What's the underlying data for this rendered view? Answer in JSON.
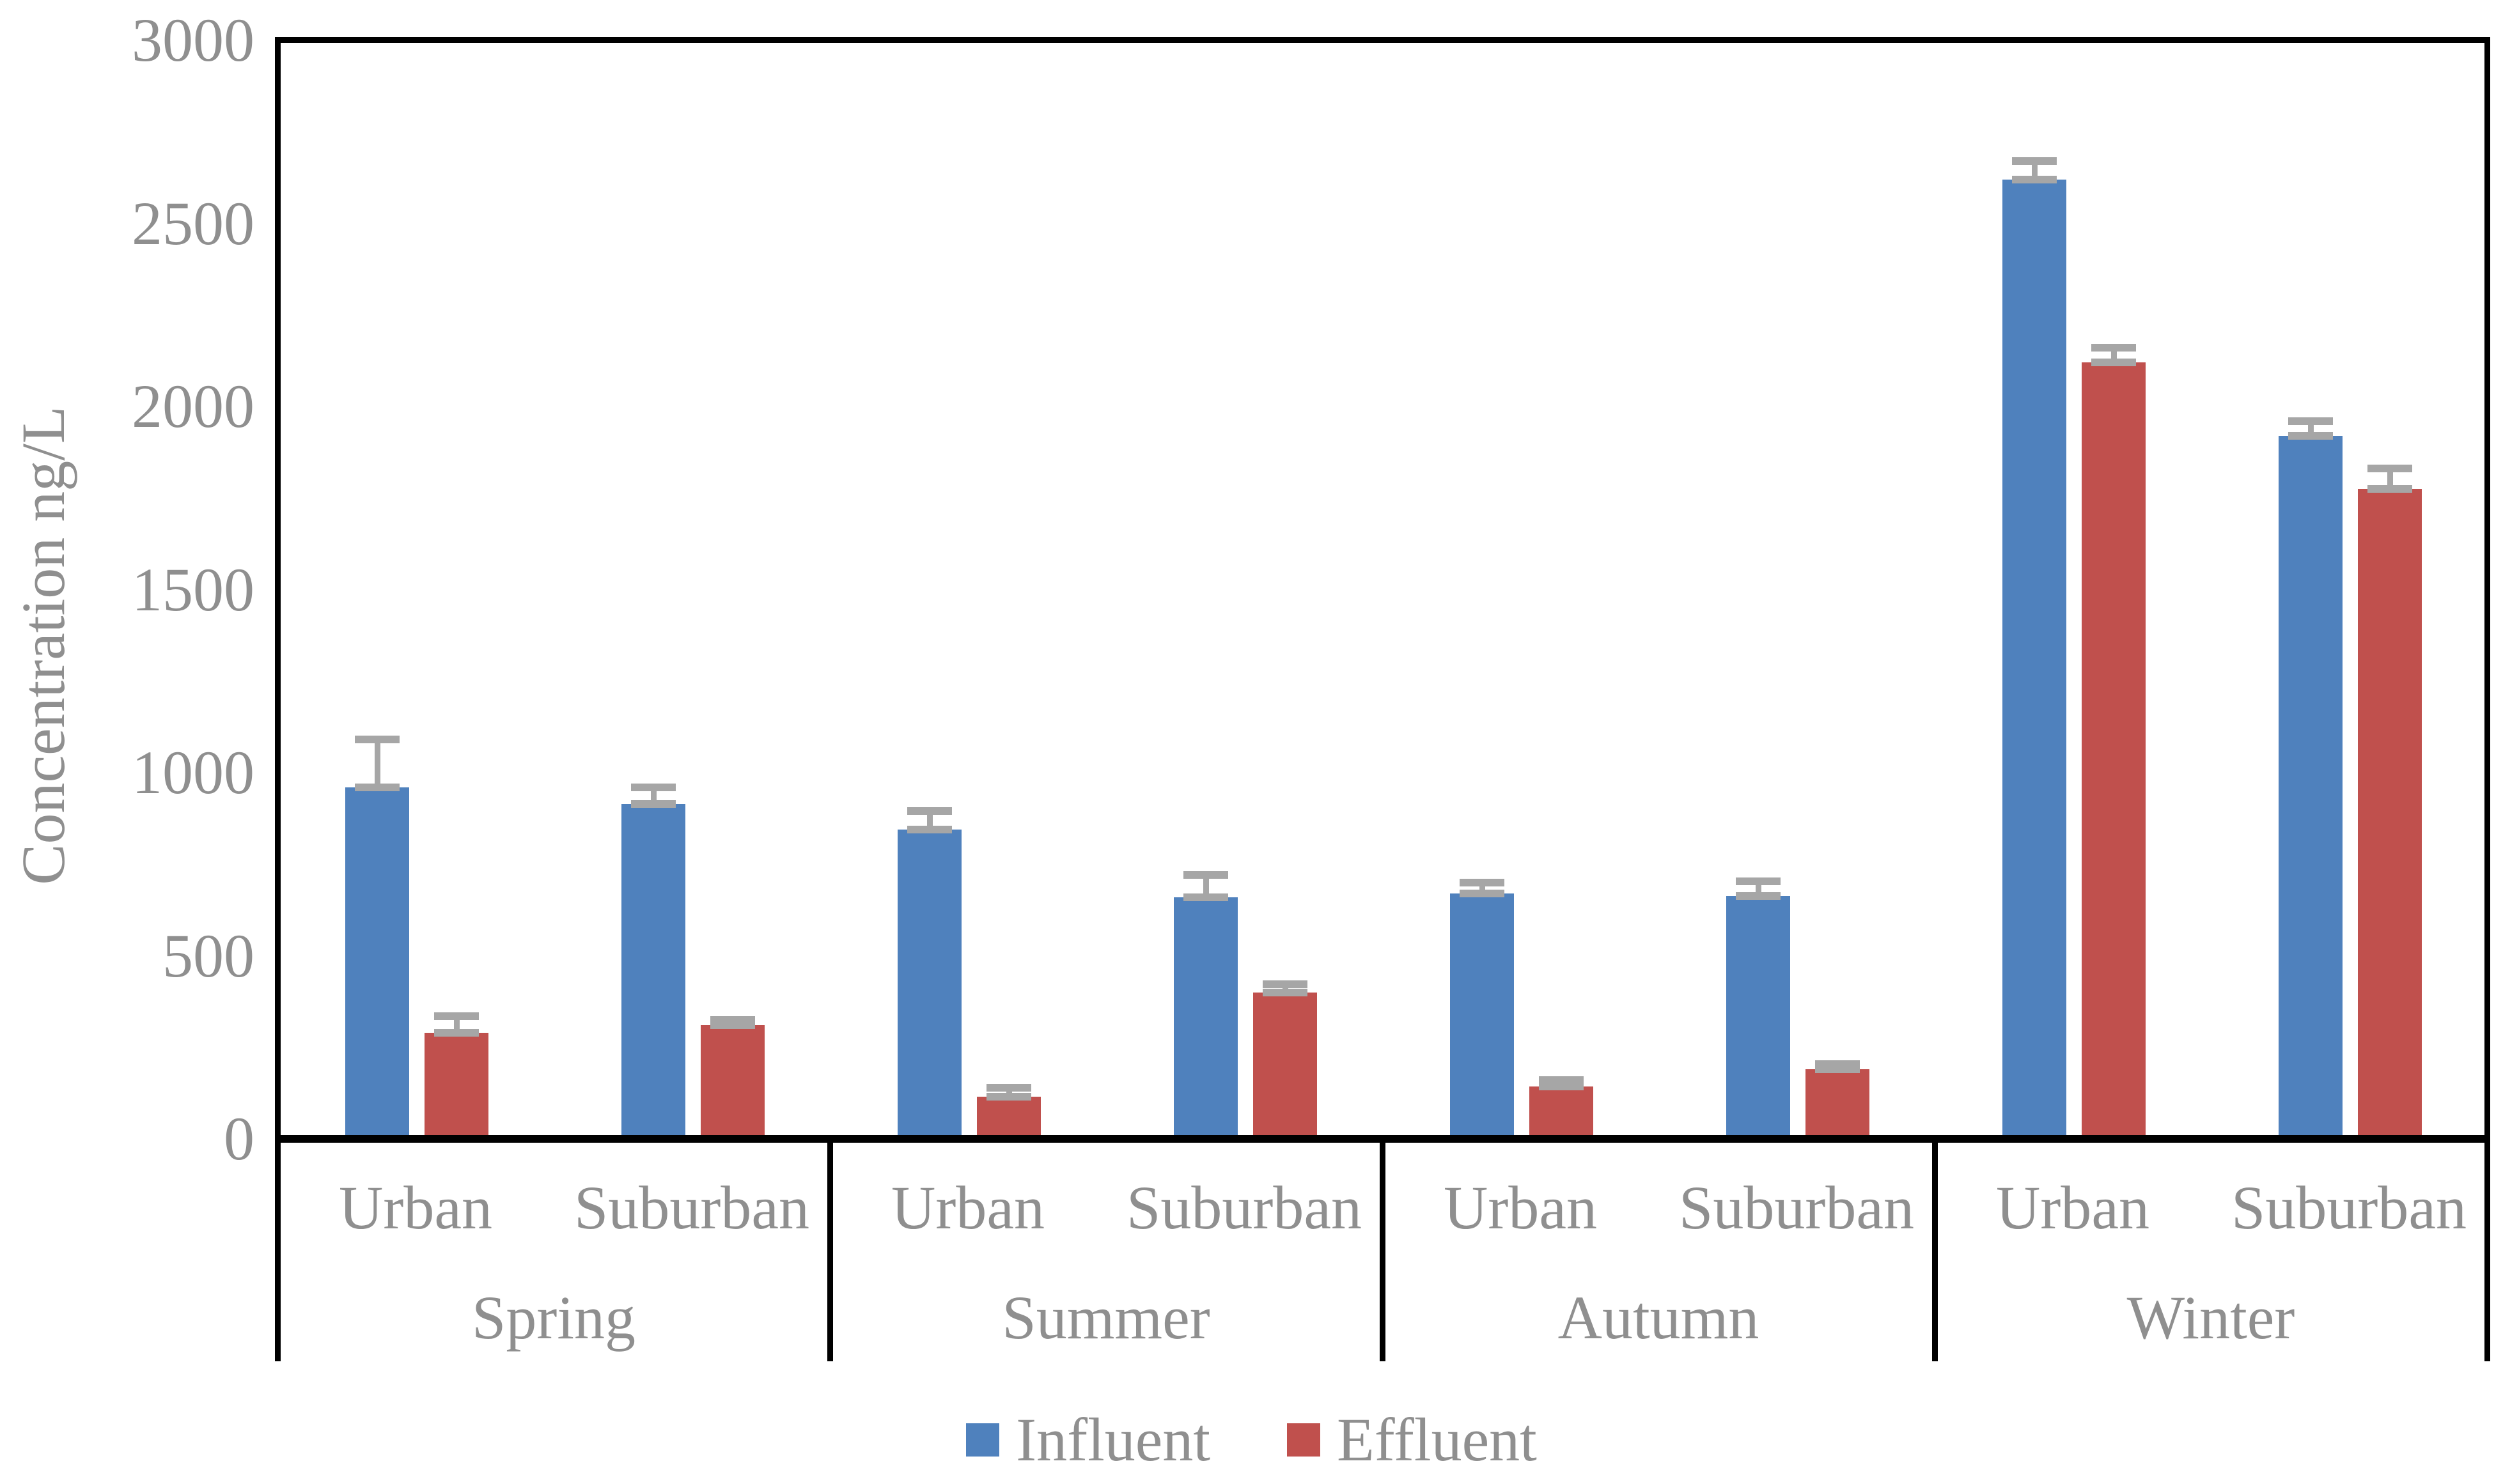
{
  "chart_data": {
    "type": "bar",
    "title": "",
    "ylabel": "Concentration ng/L",
    "xlabel": "",
    "ylim": [
      0,
      3000
    ],
    "yticks": [
      0,
      500,
      1000,
      1500,
      2000,
      2500,
      3000
    ],
    "grid": false,
    "legend_position": "bottom",
    "groups": [
      "Spring",
      "Summer",
      "Autumn",
      "Winter"
    ],
    "categories": [
      "Urban",
      "Suburban",
      "Urban",
      "Suburban",
      "Urban",
      "Suburban",
      "Urban",
      "Suburban"
    ],
    "series": [
      {
        "name": "Influent",
        "color": "#4F81BD",
        "values": [
          960,
          915,
          845,
          660,
          670,
          663,
          2620,
          1920
        ],
        "errors": [
          130,
          45,
          50,
          60,
          30,
          40,
          50,
          40
        ]
      },
      {
        "name": "Effluent",
        "color": "#C0504D",
        "values": [
          290,
          310,
          115,
          400,
          143,
          190,
          2120,
          1775
        ],
        "errors": [
          45,
          15,
          25,
          22,
          17,
          15,
          40,
          55
        ]
      }
    ],
    "error_bar_color": "#A6A6A6",
    "axis_text_color": "#8F8F8F",
    "axis_line_color": "#000000"
  }
}
